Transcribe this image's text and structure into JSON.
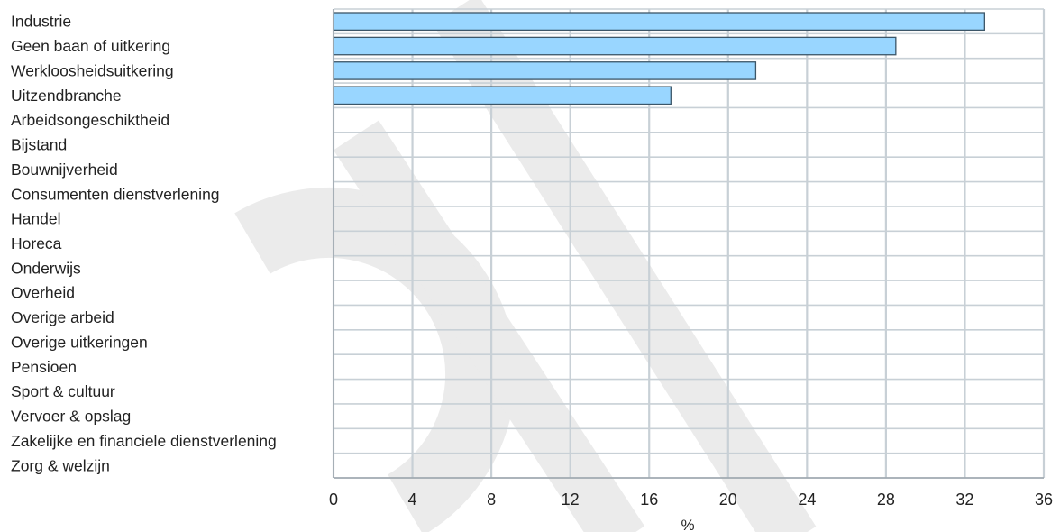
{
  "chart_data": {
    "type": "bar",
    "orientation": "horizontal",
    "title": "",
    "xlabel": "%",
    "ylabel": "",
    "categories": [
      "Industrie",
      "Geen baan of uitkering",
      "Werkloosheidsuitkering",
      "Uitzendbranche",
      "Arbeidsongeschiktheid",
      "Bijstand",
      "Bouwnijverheid",
      "Consumenten dienstverlening",
      "Handel",
      "Horeca",
      "Onderwijs",
      "Overheid",
      "Overige arbeid",
      "Overige uitkeringen",
      "Pensioen",
      "Sport & cultuur",
      "Vervoer & opslag",
      "Zakelijke en financiele dienstverlening",
      "Zorg & welzijn"
    ],
    "values": [
      33.0,
      28.5,
      21.4,
      17.1,
      null,
      null,
      null,
      null,
      null,
      null,
      null,
      null,
      null,
      null,
      null,
      null,
      null,
      null,
      null
    ],
    "xlim": [
      0,
      36
    ],
    "xticks": [
      0,
      4,
      8,
      12,
      16,
      20,
      24,
      28,
      32,
      36
    ],
    "grid": true,
    "legend": "none",
    "colors": {
      "bar_fill": "#99d6ff",
      "bar_stroke": "#3c5668",
      "grid": "#c8d0d6",
      "watermark": "#ebebeb"
    }
  }
}
